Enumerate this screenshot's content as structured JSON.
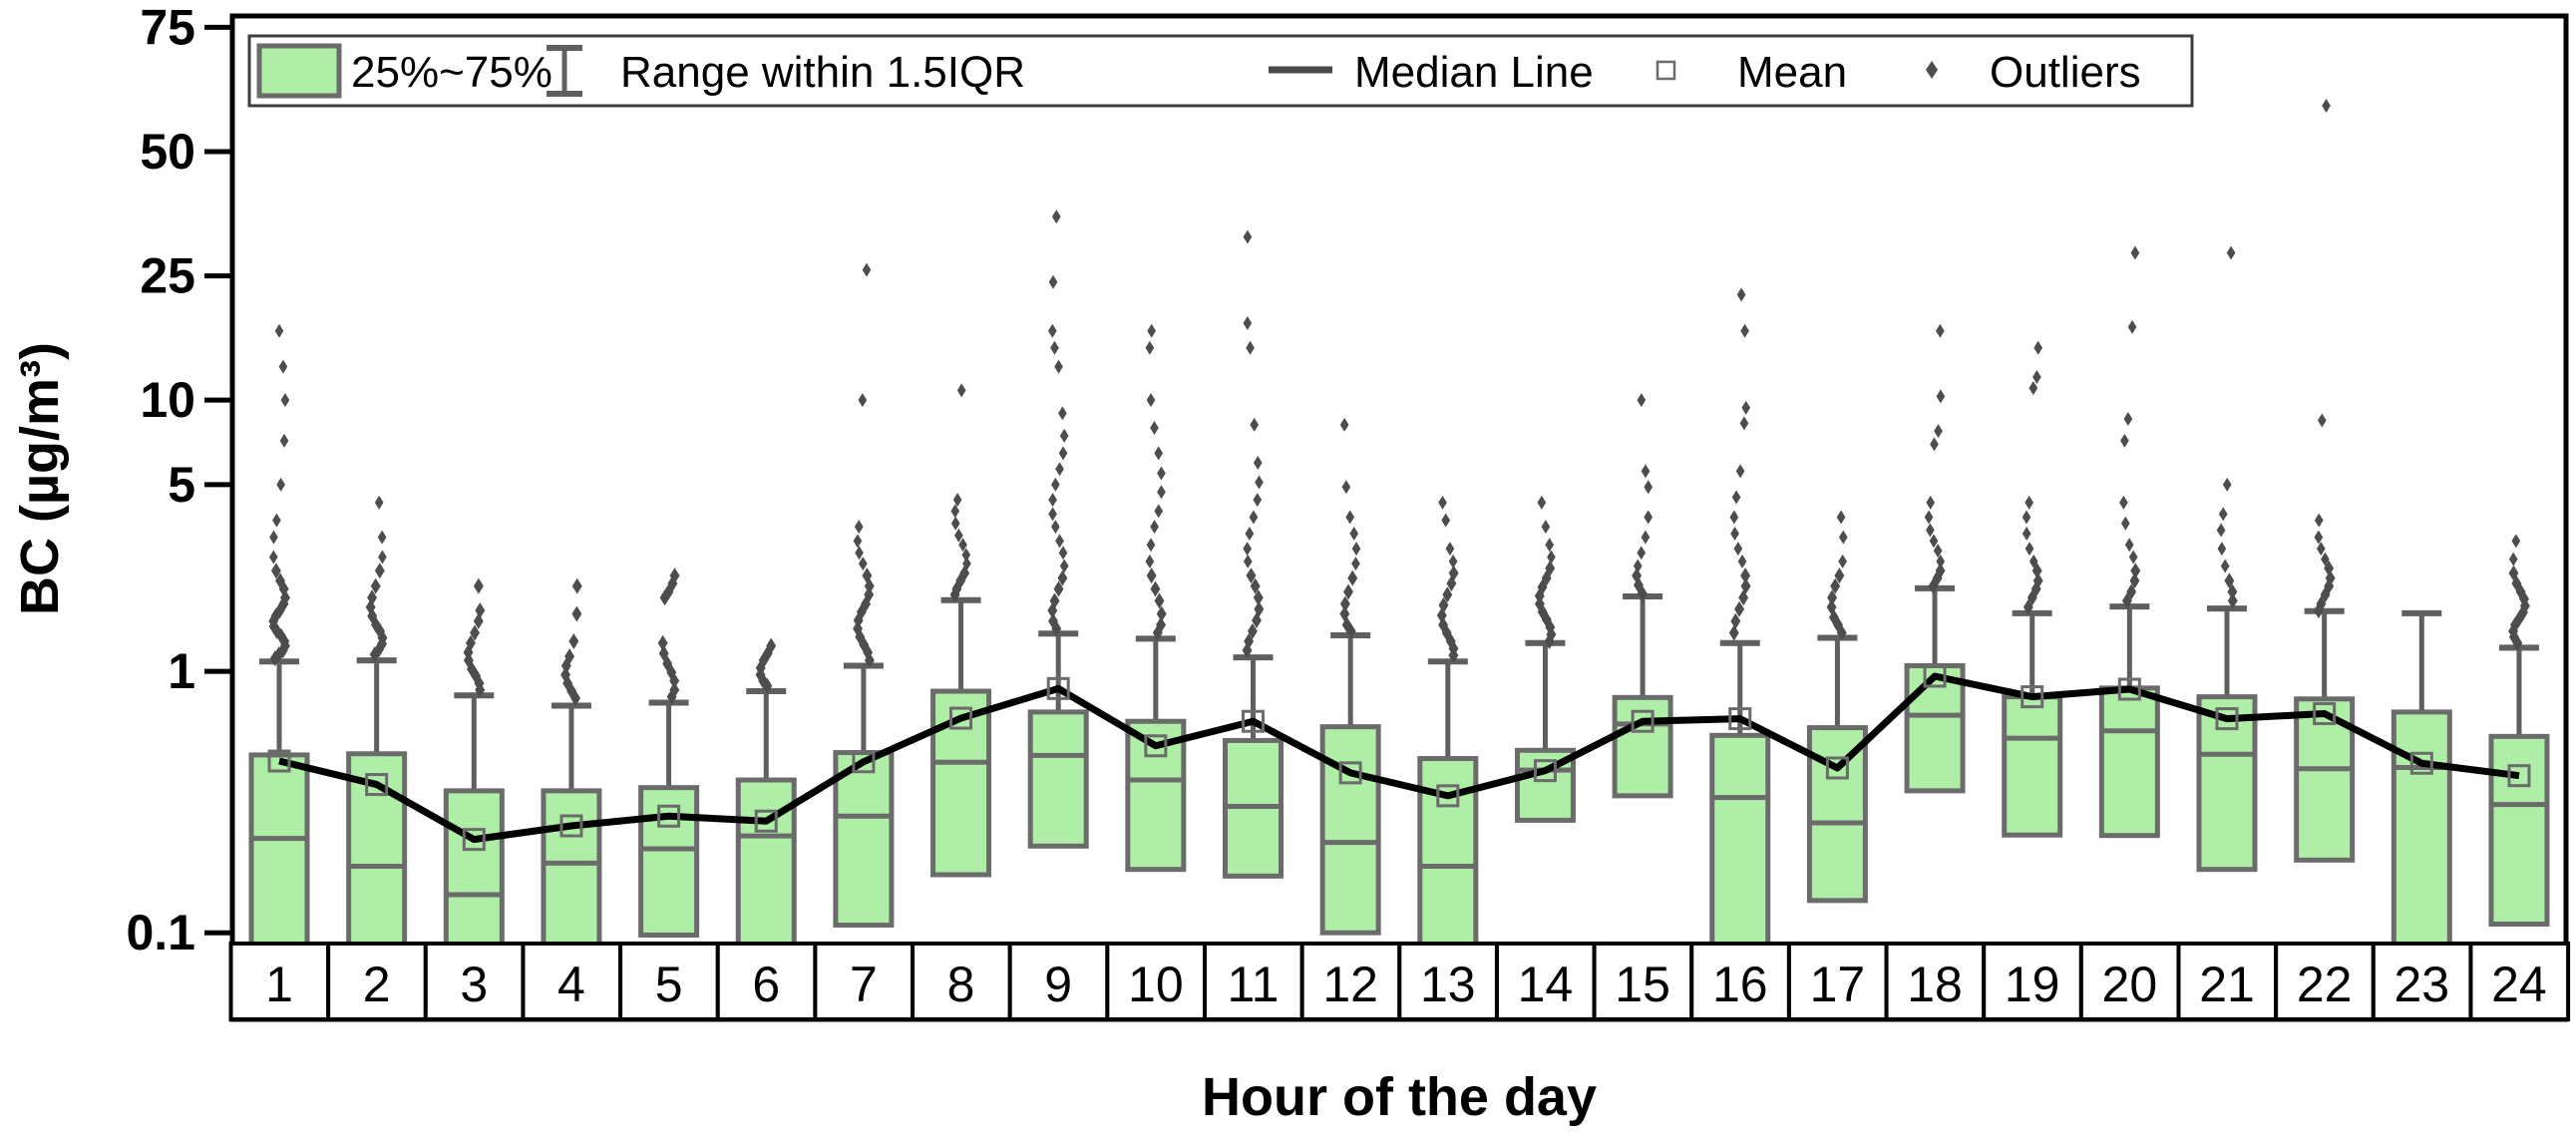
{
  "legend": {
    "box_label": "25%~75%",
    "range_label": "Range within 1.5IQR",
    "median_label": "Median Line",
    "mean_label": "Mean",
    "outliers_label": "Outliers"
  },
  "axes": {
    "y_label": "BC (µg/m³)",
    "x_label": "Hour of the day",
    "y_tick_labels": [
      "75",
      "50",
      "25",
      "10",
      "5",
      "1",
      "0.1"
    ]
  },
  "colors": {
    "box_fill": "#aeeea6",
    "box_border": "#6b6b6b",
    "whisker": "#5f5f5f",
    "outlier": "#4d4d4d",
    "mean_marker": "#6b6b6b",
    "median_line": "#000000",
    "frame": "#000000"
  },
  "chart_data": {
    "type": "box",
    "title": "",
    "xlabel": "Hour of the day",
    "ylabel": "BC (µg/m³)",
    "y_scale": "logit",
    "y_ticks": [
      75,
      50,
      25,
      10,
      5,
      1,
      0.1
    ],
    "y_range": [
      0.092,
      80
    ],
    "grid": false,
    "legend_position": "top",
    "categories": [
      "1",
      "2",
      "3",
      "4",
      "5",
      "6",
      "7",
      "8",
      "9",
      "10",
      "11",
      "12",
      "13",
      "14",
      "15",
      "16",
      "17",
      "18",
      "19",
      "20",
      "21",
      "22",
      "23",
      "24"
    ],
    "boxes": [
      {
        "hour": 1,
        "q1": 0.085,
        "median": 0.23,
        "q3": 0.48,
        "whisker_high": 1.09,
        "mean": 0.455,
        "outliers": [
          17,
          13,
          10,
          7.2,
          5,
          3.7,
          3.2,
          2.7,
          2.4,
          2.2,
          2.05,
          1.9,
          1.8,
          1.7,
          1.62,
          1.55,
          1.48,
          1.42,
          1.36,
          1.3,
          1.25,
          1.2,
          1.16,
          1.12
        ]
      },
      {
        "hour": 2,
        "q1": 0.085,
        "median": 0.18,
        "q3": 0.485,
        "whisker_high": 1.1,
        "mean": 0.37,
        "outliers": [
          4.3,
          3.2,
          2.7,
          2.4,
          2.1,
          1.9,
          1.75,
          1.62,
          1.5,
          1.42,
          1.34,
          1.27,
          1.21,
          1.16
        ]
      },
      {
        "hour": 3,
        "q1": 0.085,
        "median": 0.14,
        "q3": 0.35,
        "whisker_high": 0.81,
        "mean": 0.228,
        "outliers": [
          2.1,
          1.7,
          1.55,
          1.4,
          1.28,
          1.18,
          1.1,
          1.02,
          0.96,
          0.9,
          0.85
        ]
      },
      {
        "hour": 4,
        "q1": 0.085,
        "median": 0.185,
        "q3": 0.35,
        "whisker_high": 0.74,
        "mean": 0.257,
        "outliers": [
          2.1,
          1.65,
          1.3,
          1.14,
          1.05,
          0.97,
          0.9,
          0.84,
          0.79
        ]
      },
      {
        "hour": 5,
        "q1": 0.098,
        "median": 0.21,
        "q3": 0.36,
        "whisker_high": 0.76,
        "mean": 0.28,
        "outliers": [
          2.3,
          2.15,
          2.0,
          1.9,
          1.28,
          1.17,
          1.07,
          0.99,
          0.92,
          0.85,
          0.8
        ]
      },
      {
        "hour": 6,
        "q1": 0.08,
        "median": 0.235,
        "q3": 0.385,
        "whisker_high": 0.84,
        "mean": 0.268,
        "outliers": [
          1.25,
          1.17,
          1.1,
          1.03,
          0.97,
          0.92,
          0.88
        ]
      },
      {
        "hour": 7,
        "q1": 0.107,
        "median": 0.28,
        "q3": 0.49,
        "whisker_high": 1.05,
        "mean": 0.452,
        "outliers": [
          26,
          10,
          3.5,
          3.1,
          2.8,
          2.55,
          2.3,
          2.1,
          1.95,
          1.8,
          1.68,
          1.56,
          1.45,
          1.35,
          1.26,
          1.18,
          1.1
        ]
      },
      {
        "hour": 8,
        "q1": 0.167,
        "median": 0.45,
        "q3": 0.84,
        "whisker_high": 1.86,
        "mean": 0.663,
        "outliers": [
          10.8,
          4.4,
          4.0,
          3.6,
          3.25,
          3.0,
          2.75,
          2.55,
          2.35,
          2.2,
          2.05,
          1.95
        ]
      },
      {
        "hour": 9,
        "q1": 0.215,
        "median": 0.478,
        "q3": 0.7,
        "whisker_high": 1.39,
        "mean": 0.86,
        "outliers": [
          36,
          24,
          17,
          15,
          13,
          9,
          7.5,
          6.5,
          5.7,
          5,
          4.4,
          3.9,
          3.5,
          3.1,
          2.8,
          2.5,
          2.25,
          2.05,
          1.85,
          1.7,
          1.55,
          1.45
        ]
      },
      {
        "hour": 10,
        "q1": 0.175,
        "median": 0.385,
        "q3": 0.645,
        "whisker_high": 1.33,
        "mean": 0.52,
        "outliers": [
          17,
          15,
          10,
          8,
          6.5,
          5.5,
          4.7,
          4,
          3.5,
          3,
          2.6,
          2.3,
          2.05,
          1.85,
          1.65,
          1.5,
          1.4
        ]
      },
      {
        "hour": 11,
        "q1": 0.165,
        "median": 0.305,
        "q3": 0.545,
        "whisker_high": 1.13,
        "mean": 0.645,
        "outliers": [
          32,
          18,
          15,
          8.2,
          6,
          5.1,
          4.4,
          3.8,
          3.3,
          2.9,
          2.6,
          2.3,
          2.1,
          1.9,
          1.72,
          1.56,
          1.42,
          1.3,
          1.2
        ]
      },
      {
        "hour": 12,
        "q1": 0.1,
        "median": 0.222,
        "q3": 0.615,
        "whisker_high": 1.37,
        "mean": 0.41,
        "outliers": [
          8.2,
          4.9,
          3.8,
          3.3,
          2.9,
          2.55,
          2.25,
          2.0,
          1.8,
          1.65,
          1.5,
          1.42
        ]
      },
      {
        "hour": 13,
        "q1": 0.085,
        "median": 0.18,
        "q3": 0.465,
        "whisker_high": 1.09,
        "mean": 0.335,
        "outliers": [
          4.3,
          3.7,
          2.9,
          2.6,
          2.35,
          2.15,
          1.95,
          1.78,
          1.63,
          1.5,
          1.4,
          1.3,
          1.22,
          1.15
        ]
      },
      {
        "hour": 14,
        "q1": 0.27,
        "median": 0.42,
        "q3": 0.5,
        "whisker_high": 1.28,
        "mean": 0.418,
        "outliers": [
          4.3,
          3.5,
          3.0,
          2.7,
          2.45,
          2.25,
          2.08,
          1.93,
          1.8,
          1.68,
          1.57,
          1.47,
          1.38,
          1.3
        ]
      },
      {
        "hour": 15,
        "q1": 0.335,
        "median": 0.63,
        "q3": 0.795,
        "whisker_high": 1.92,
        "mean": 0.645,
        "outliers": [
          10,
          5.6,
          4.9,
          3.8,
          3.2,
          2.8,
          2.5,
          2.3,
          2.12,
          1.97
        ]
      },
      {
        "hour": 16,
        "q1": 0.08,
        "median": 0.33,
        "q3": 0.57,
        "whisker_high": 1.28,
        "mean": 0.66,
        "outliers": [
          22,
          17,
          9.4,
          8.3,
          5.6,
          4.5,
          3.8,
          3.3,
          2.9,
          2.6,
          2.3,
          2.1,
          1.9,
          1.72,
          1.55,
          1.4
        ]
      },
      {
        "hour": 17,
        "q1": 0.133,
        "median": 0.264,
        "q3": 0.61,
        "whisker_high": 1.34,
        "mean": 0.428,
        "outliers": [
          3.8,
          3.2,
          2.6,
          2.3,
          2.1,
          1.9,
          1.75,
          1.6,
          1.5,
          1.4
        ]
      },
      {
        "hour": 18,
        "q1": 0.35,
        "median": 0.68,
        "q3": 1.05,
        "whisker_high": 2.06,
        "mean": 0.958,
        "outliers": [
          17,
          10.3,
          7.8,
          7.0,
          4.3,
          3.8,
          3.4,
          3.1,
          2.85,
          2.6,
          2.4,
          2.25,
          2.1
        ]
      },
      {
        "hour": 19,
        "q1": 0.237,
        "median": 0.556,
        "q3": 0.8,
        "whisker_high": 1.66,
        "mean": 0.8,
        "outliers": [
          15,
          12,
          11,
          4.3,
          3.8,
          3.3,
          2.9,
          2.6,
          2.4,
          2.2,
          2.05,
          1.9,
          1.75
        ]
      },
      {
        "hour": 20,
        "q1": 0.236,
        "median": 0.593,
        "q3": 0.864,
        "whisker_high": 1.76,
        "mean": 0.855,
        "outliers": [
          29,
          17.5,
          8.6,
          7.2,
          4.3,
          3.6,
          3.0,
          2.7,
          2.4,
          2.2,
          2.0,
          1.85
        ]
      },
      {
        "hour": 21,
        "q1": 0.175,
        "median": 0.483,
        "q3": 0.8,
        "whisker_high": 1.73,
        "mean": 0.66,
        "outliers": [
          29,
          5.0,
          3.9,
          3.4,
          2.9,
          2.5,
          2.2,
          2.0,
          1.85
        ]
      },
      {
        "hour": 22,
        "q1": 0.19,
        "median": 0.425,
        "q3": 0.785,
        "whisker_high": 1.69,
        "mean": 0.69,
        "outliers": [
          60,
          8.5,
          3.7,
          3.2,
          2.9,
          2.65,
          2.45,
          2.25,
          2.1,
          1.95,
          1.8,
          1.7
        ]
      },
      {
        "hour": 23,
        "q1": 0.08,
        "median": 0.43,
        "q3": 0.7,
        "whisker_high": 1.66,
        "mean": 0.446,
        "outliers": []
      },
      {
        "hour": 24,
        "q1": 0.108,
        "median": 0.31,
        "q3": 0.565,
        "whisker_high": 1.23,
        "mean": 0.4,
        "outliers": [
          3.1,
          2.65,
          2.35,
          2.15,
          2.0,
          1.88,
          1.77,
          1.67,
          1.58,
          1.5,
          1.42,
          1.35,
          1.28
        ]
      }
    ]
  }
}
